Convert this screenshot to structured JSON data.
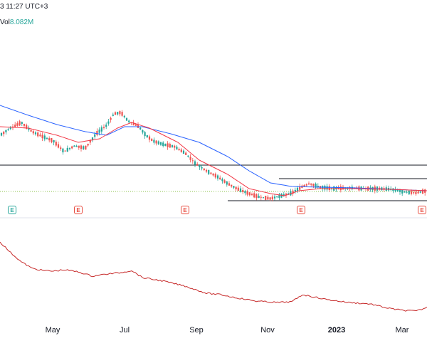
{
  "header": {
    "timestamp": "3 11:27 UTC+3"
  },
  "volume": {
    "label": "Vol",
    "value": "8.082M"
  },
  "x_axis": {
    "labels": [
      {
        "text": "May",
        "bold": false
      },
      {
        "text": "Jul",
        "bold": false
      },
      {
        "text": "Sep",
        "bold": false
      },
      {
        "text": "Nov",
        "bold": false
      },
      {
        "text": "2023",
        "bold": true
      },
      {
        "text": "Mar",
        "bold": false
      }
    ]
  },
  "earnings_markers": [
    {
      "glyph": "E",
      "color": "green"
    },
    {
      "glyph": "E",
      "color": "red"
    },
    {
      "glyph": "E",
      "color": "red"
    },
    {
      "glyph": "E",
      "color": "red"
    },
    {
      "glyph": "E",
      "color": "red"
    }
  ],
  "colors": {
    "up": "#26a69a",
    "down": "#ef5350",
    "ma_fast": "#f23645",
    "ma_slow": "#2962ff",
    "indicator": "#c62828",
    "price_line": "#4caf50",
    "level_line": "#131722"
  }
}
